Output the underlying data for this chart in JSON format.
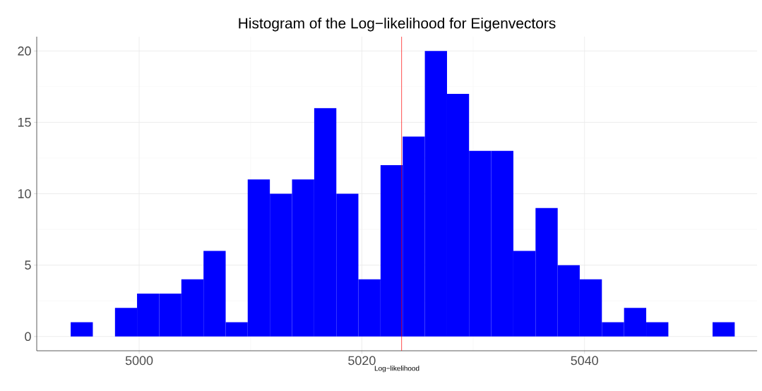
{
  "chart_data": {
    "type": "histogram",
    "title": "Histogram of the Log−likelihood for Eigenvectors",
    "xlabel": "Log−likelihood",
    "bins": [
      4993.85,
      4995.84,
      4997.83,
      4999.81,
      5001.8,
      5003.79,
      5005.78,
      5007.77,
      5009.75,
      5011.74,
      5013.73,
      5015.72,
      5017.71,
      5019.69,
      5021.68,
      5023.67,
      5025.66,
      5027.65,
      5029.63,
      5031.62,
      5033.61,
      5035.6,
      5037.59,
      5039.57,
      5041.56,
      5043.55,
      5045.54,
      5047.53,
      5049.51,
      5051.5,
      5053.49
    ],
    "values": [
      1,
      0,
      2,
      3,
      3,
      4,
      6,
      1,
      11,
      10,
      11,
      16,
      10,
      4,
      12,
      14,
      20,
      17,
      13,
      13,
      6,
      9,
      5,
      4,
      1,
      2,
      1,
      0,
      0,
      1
    ],
    "color": "#0000ff",
    "xlim": [
      4990.8,
      5055.5
    ],
    "ylim": [
      -1,
      21
    ],
    "xticks": [
      5000,
      5020,
      5040
    ],
    "yticks": [
      0,
      5,
      10,
      15,
      20
    ],
    "grid": true,
    "ref_lines": [
      {
        "axis": "x",
        "value": 5023.57,
        "color": "#ff0000"
      }
    ]
  }
}
